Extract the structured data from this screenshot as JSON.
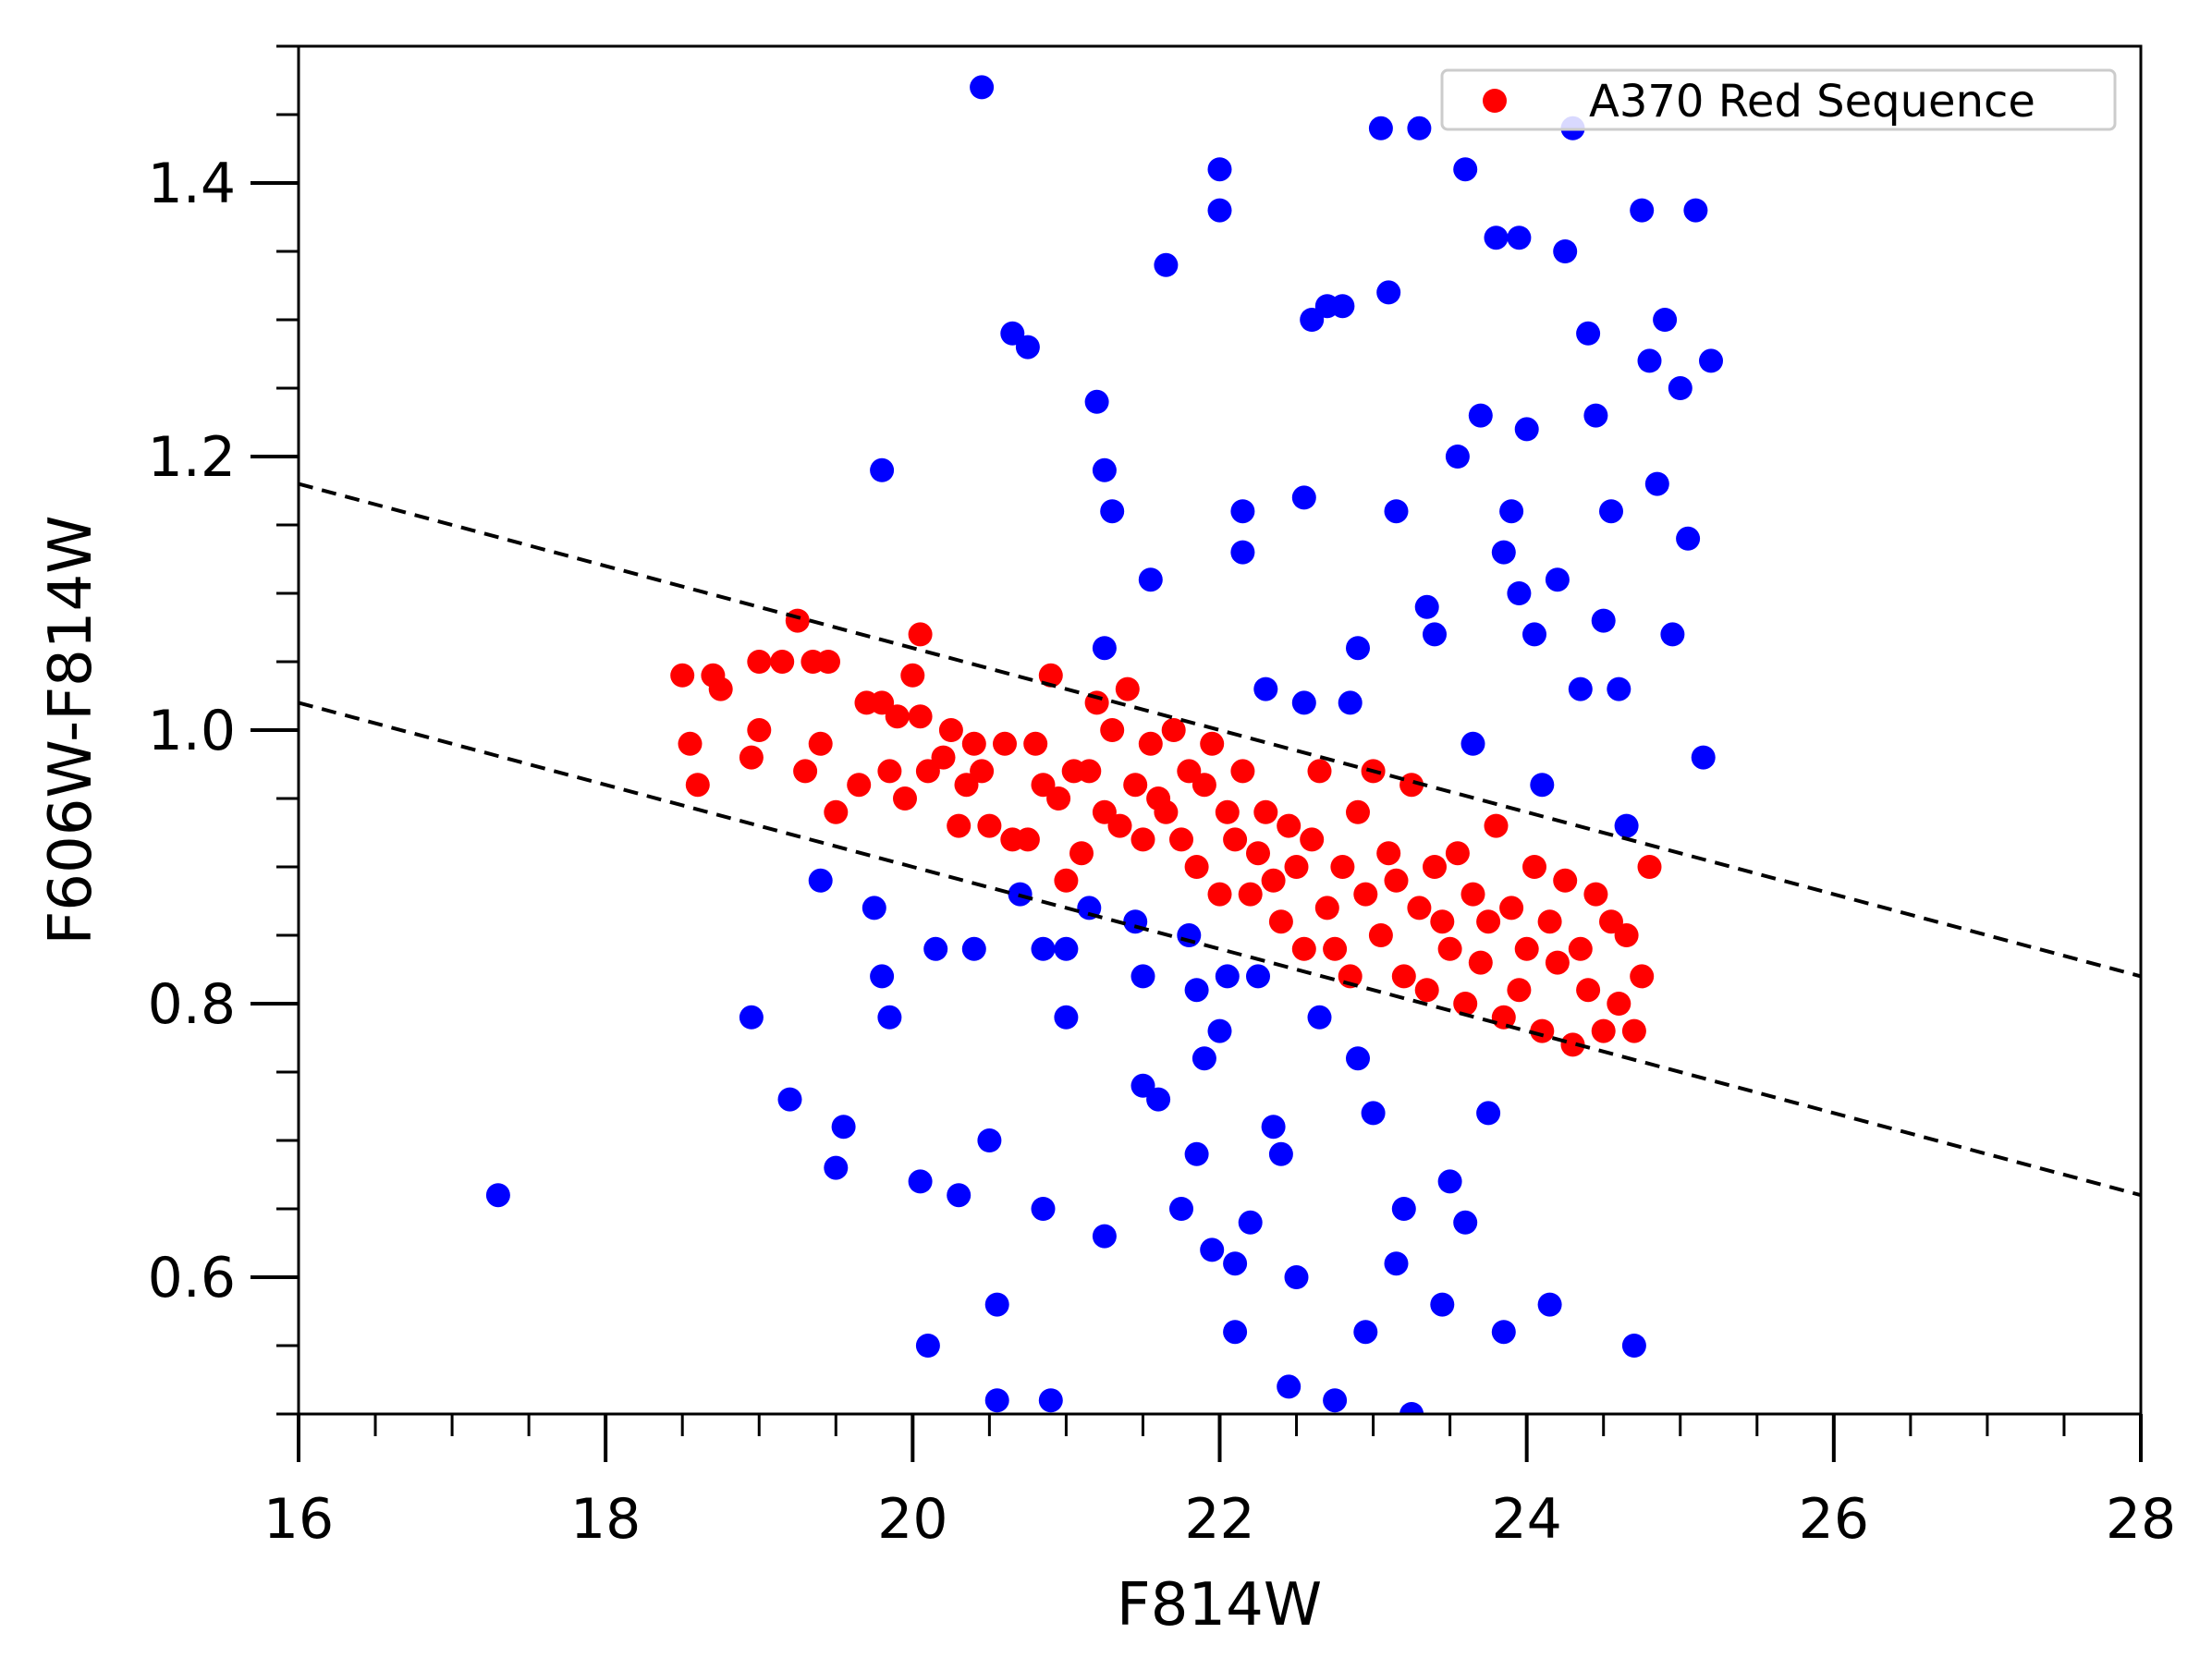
{
  "chart_data": {
    "type": "scatter",
    "xlabel": "F814W",
    "ylabel": "F606W-F814W",
    "xlim": [
      16,
      28
    ],
    "ylim": [
      0.5,
      1.5
    ],
    "x_ticks": [
      16,
      18,
      20,
      22,
      24,
      26,
      28
    ],
    "x_tick_labels": [
      "16",
      "18",
      "20",
      "22",
      "24",
      "26",
      "28"
    ],
    "x_minor_step": 0.5,
    "y_ticks": [
      0.6,
      0.8,
      1.0,
      1.2,
      1.4
    ],
    "y_tick_labels": [
      "0.6",
      "0.8",
      "1.0",
      "1.2",
      "1.4"
    ],
    "y_minor_step": 0.05,
    "grid": false,
    "legend": {
      "position": "top-right",
      "entries": [
        {
          "label": "A370 Red Sequence",
          "color": "#ff0000"
        }
      ]
    },
    "lines": [
      {
        "style": "dashed",
        "color": "#000000",
        "x": [
          16,
          28
        ],
        "y": [
          1.18,
          0.82
        ]
      },
      {
        "style": "dashed",
        "color": "#000000",
        "x": [
          16,
          28
        ],
        "y": [
          1.02,
          0.66
        ]
      }
    ],
    "series": [
      {
        "color": "#0000ff",
        "points": [
          [
            17.3,
            0.66
          ],
          [
            18.95,
            0.79
          ],
          [
            19.2,
            0.73
          ],
          [
            19.4,
            0.89
          ],
          [
            19.5,
            0.68
          ],
          [
            19.55,
            0.71
          ],
          [
            19.8,
            1.19
          ],
          [
            19.75,
            0.87
          ],
          [
            19.8,
            0.82
          ],
          [
            19.85,
            0.79
          ],
          [
            20.05,
            0.67
          ],
          [
            20.1,
            0.55
          ],
          [
            20.15,
            0.84
          ],
          [
            20.3,
            0.66
          ],
          [
            20.4,
            0.84
          ],
          [
            20.45,
            1.47
          ],
          [
            20.5,
            0.7
          ],
          [
            20.55,
            0.58
          ],
          [
            20.55,
            0.51
          ],
          [
            20.65,
            1.29
          ],
          [
            20.75,
            1.28
          ],
          [
            20.7,
            0.88
          ],
          [
            20.85,
            0.84
          ],
          [
            20.85,
            0.65
          ],
          [
            20.9,
            0.51
          ],
          [
            21.0,
            0.84
          ],
          [
            21.0,
            0.79
          ],
          [
            21.15,
            0.87
          ],
          [
            21.2,
            1.24
          ],
          [
            21.25,
            1.19
          ],
          [
            21.25,
            1.06
          ],
          [
            21.25,
            0.63
          ],
          [
            21.3,
            1.16
          ],
          [
            21.45,
            0.86
          ],
          [
            21.5,
            0.74
          ],
          [
            21.5,
            0.82
          ],
          [
            21.55,
            1.11
          ],
          [
            21.6,
            0.73
          ],
          [
            21.65,
            1.34
          ],
          [
            21.75,
            0.65
          ],
          [
            21.8,
            0.85
          ],
          [
            21.85,
            0.69
          ],
          [
            21.85,
            0.81
          ],
          [
            21.9,
            0.76
          ],
          [
            21.95,
            0.62
          ],
          [
            22.0,
            1.41
          ],
          [
            22.0,
            1.38
          ],
          [
            22.0,
            0.78
          ],
          [
            22.05,
            0.82
          ],
          [
            22.1,
            0.56
          ],
          [
            22.1,
            0.61
          ],
          [
            22.15,
            1.16
          ],
          [
            22.15,
            1.13
          ],
          [
            22.2,
            0.64
          ],
          [
            22.25,
            0.82
          ],
          [
            22.3,
            1.03
          ],
          [
            22.35,
            0.71
          ],
          [
            22.4,
            0.69
          ],
          [
            22.45,
            0.52
          ],
          [
            22.5,
            0.6
          ],
          [
            22.55,
            1.17
          ],
          [
            22.55,
            1.02
          ],
          [
            22.6,
            1.3
          ],
          [
            22.65,
            0.79
          ],
          [
            22.7,
            1.31
          ],
          [
            22.75,
            0.51
          ],
          [
            22.8,
            1.31
          ],
          [
            22.85,
            1.02
          ],
          [
            22.9,
            1.06
          ],
          [
            22.9,
            0.76
          ],
          [
            22.95,
            0.56
          ],
          [
            23.0,
            0.72
          ],
          [
            23.05,
            1.44
          ],
          [
            23.1,
            1.32
          ],
          [
            23.15,
            1.16
          ],
          [
            23.15,
            0.61
          ],
          [
            23.2,
            0.65
          ],
          [
            23.25,
            0.5
          ],
          [
            23.3,
            1.44
          ],
          [
            23.35,
            1.09
          ],
          [
            23.4,
            1.07
          ],
          [
            23.45,
            0.58
          ],
          [
            23.5,
            0.67
          ],
          [
            23.55,
            1.2
          ],
          [
            23.6,
            1.41
          ],
          [
            23.6,
            0.64
          ],
          [
            23.65,
            0.99
          ],
          [
            23.7,
            1.23
          ],
          [
            23.75,
            0.72
          ],
          [
            23.8,
            1.36
          ],
          [
            23.85,
            1.13
          ],
          [
            23.85,
            0.56
          ],
          [
            23.9,
            1.16
          ],
          [
            23.95,
            1.36
          ],
          [
            23.95,
            1.1
          ],
          [
            24.0,
            1.22
          ],
          [
            24.05,
            1.07
          ],
          [
            24.1,
            0.96
          ],
          [
            24.15,
            0.58
          ],
          [
            24.2,
            1.11
          ],
          [
            24.25,
            1.35
          ],
          [
            24.3,
            1.44
          ],
          [
            24.35,
            1.03
          ],
          [
            24.4,
            1.29
          ],
          [
            24.45,
            1.23
          ],
          [
            24.5,
            1.08
          ],
          [
            24.55,
            1.16
          ],
          [
            24.6,
            1.03
          ],
          [
            24.65,
            0.93
          ],
          [
            24.7,
            0.55
          ],
          [
            24.75,
            1.38
          ],
          [
            24.8,
            1.27
          ],
          [
            24.85,
            1.18
          ],
          [
            24.9,
            1.3
          ],
          [
            24.95,
            1.07
          ],
          [
            25.0,
            1.25
          ],
          [
            25.05,
            1.14
          ],
          [
            25.1,
            1.38
          ],
          [
            25.15,
            0.98
          ],
          [
            25.2,
            1.27
          ]
        ]
      },
      {
        "name": "A370 Red Sequence",
        "color": "#ff0000",
        "points": [
          [
            18.5,
            1.04
          ],
          [
            18.55,
            0.99
          ],
          [
            18.6,
            0.96
          ],
          [
            18.7,
            1.04
          ],
          [
            18.75,
            1.03
          ],
          [
            18.95,
            0.98
          ],
          [
            19.0,
            1.0
          ],
          [
            19.0,
            1.05
          ],
          [
            19.15,
            1.05
          ],
          [
            19.25,
            1.08
          ],
          [
            19.3,
            0.97
          ],
          [
            19.35,
            1.05
          ],
          [
            19.4,
            0.99
          ],
          [
            19.45,
            1.05
          ],
          [
            19.5,
            0.94
          ],
          [
            19.65,
            0.96
          ],
          [
            19.7,
            1.02
          ],
          [
            19.8,
            1.02
          ],
          [
            19.85,
            0.97
          ],
          [
            19.9,
            1.01
          ],
          [
            19.95,
            0.95
          ],
          [
            20.0,
            1.04
          ],
          [
            20.05,
            1.07
          ],
          [
            20.05,
            1.01
          ],
          [
            20.1,
            0.97
          ],
          [
            20.2,
            0.98
          ],
          [
            20.25,
            1.0
          ],
          [
            20.3,
            0.93
          ],
          [
            20.35,
            0.96
          ],
          [
            20.4,
            0.99
          ],
          [
            20.45,
            0.97
          ],
          [
            20.5,
            0.93
          ],
          [
            20.6,
            0.99
          ],
          [
            20.65,
            0.92
          ],
          [
            20.75,
            0.92
          ],
          [
            20.8,
            0.99
          ],
          [
            20.85,
            0.96
          ],
          [
            20.9,
            1.04
          ],
          [
            20.95,
            0.95
          ],
          [
            21.0,
            0.89
          ],
          [
            21.05,
            0.97
          ],
          [
            21.1,
            0.91
          ],
          [
            21.15,
            0.97
          ],
          [
            21.2,
            1.02
          ],
          [
            21.25,
            0.94
          ],
          [
            21.3,
            1.0
          ],
          [
            21.35,
            0.93
          ],
          [
            21.4,
            1.03
          ],
          [
            21.45,
            0.96
          ],
          [
            21.5,
            0.92
          ],
          [
            21.55,
            0.99
          ],
          [
            21.6,
            0.95
          ],
          [
            21.65,
            0.94
          ],
          [
            21.7,
            1.0
          ],
          [
            21.75,
            0.92
          ],
          [
            21.8,
            0.97
          ],
          [
            21.85,
            0.9
          ],
          [
            21.9,
            0.96
          ],
          [
            21.95,
            0.99
          ],
          [
            22.0,
            0.88
          ],
          [
            22.05,
            0.94
          ],
          [
            22.1,
            0.92
          ],
          [
            22.15,
            0.97
          ],
          [
            22.2,
            0.88
          ],
          [
            22.25,
            0.91
          ],
          [
            22.3,
            0.94
          ],
          [
            22.35,
            0.89
          ],
          [
            22.4,
            0.86
          ],
          [
            22.45,
            0.93
          ],
          [
            22.5,
            0.9
          ],
          [
            22.55,
            0.84
          ],
          [
            22.6,
            0.92
          ],
          [
            22.65,
            0.97
          ],
          [
            22.7,
            0.87
          ],
          [
            22.75,
            0.84
          ],
          [
            22.8,
            0.9
          ],
          [
            22.85,
            0.82
          ],
          [
            22.9,
            0.94
          ],
          [
            22.95,
            0.88
          ],
          [
            23.0,
            0.97
          ],
          [
            23.05,
            0.85
          ],
          [
            23.1,
            0.91
          ],
          [
            23.15,
            0.89
          ],
          [
            23.2,
            0.82
          ],
          [
            23.25,
            0.96
          ],
          [
            23.3,
            0.87
          ],
          [
            23.35,
            0.81
          ],
          [
            23.4,
            0.9
          ],
          [
            23.45,
            0.86
          ],
          [
            23.5,
            0.84
          ],
          [
            23.55,
            0.91
          ],
          [
            23.6,
            0.8
          ],
          [
            23.65,
            0.88
          ],
          [
            23.7,
            0.83
          ],
          [
            23.75,
            0.86
          ],
          [
            23.8,
            0.93
          ],
          [
            23.85,
            0.79
          ],
          [
            23.9,
            0.87
          ],
          [
            23.95,
            0.81
          ],
          [
            24.0,
            0.84
          ],
          [
            24.05,
            0.9
          ],
          [
            24.1,
            0.78
          ],
          [
            24.15,
            0.86
          ],
          [
            24.2,
            0.83
          ],
          [
            24.25,
            0.89
          ],
          [
            24.3,
            0.77
          ],
          [
            24.35,
            0.84
          ],
          [
            24.4,
            0.81
          ],
          [
            24.45,
            0.88
          ],
          [
            24.5,
            0.78
          ],
          [
            24.55,
            0.86
          ],
          [
            24.6,
            0.8
          ],
          [
            24.65,
            0.85
          ],
          [
            24.7,
            0.78
          ],
          [
            24.75,
            0.82
          ],
          [
            24.8,
            0.9
          ]
        ]
      }
    ]
  }
}
